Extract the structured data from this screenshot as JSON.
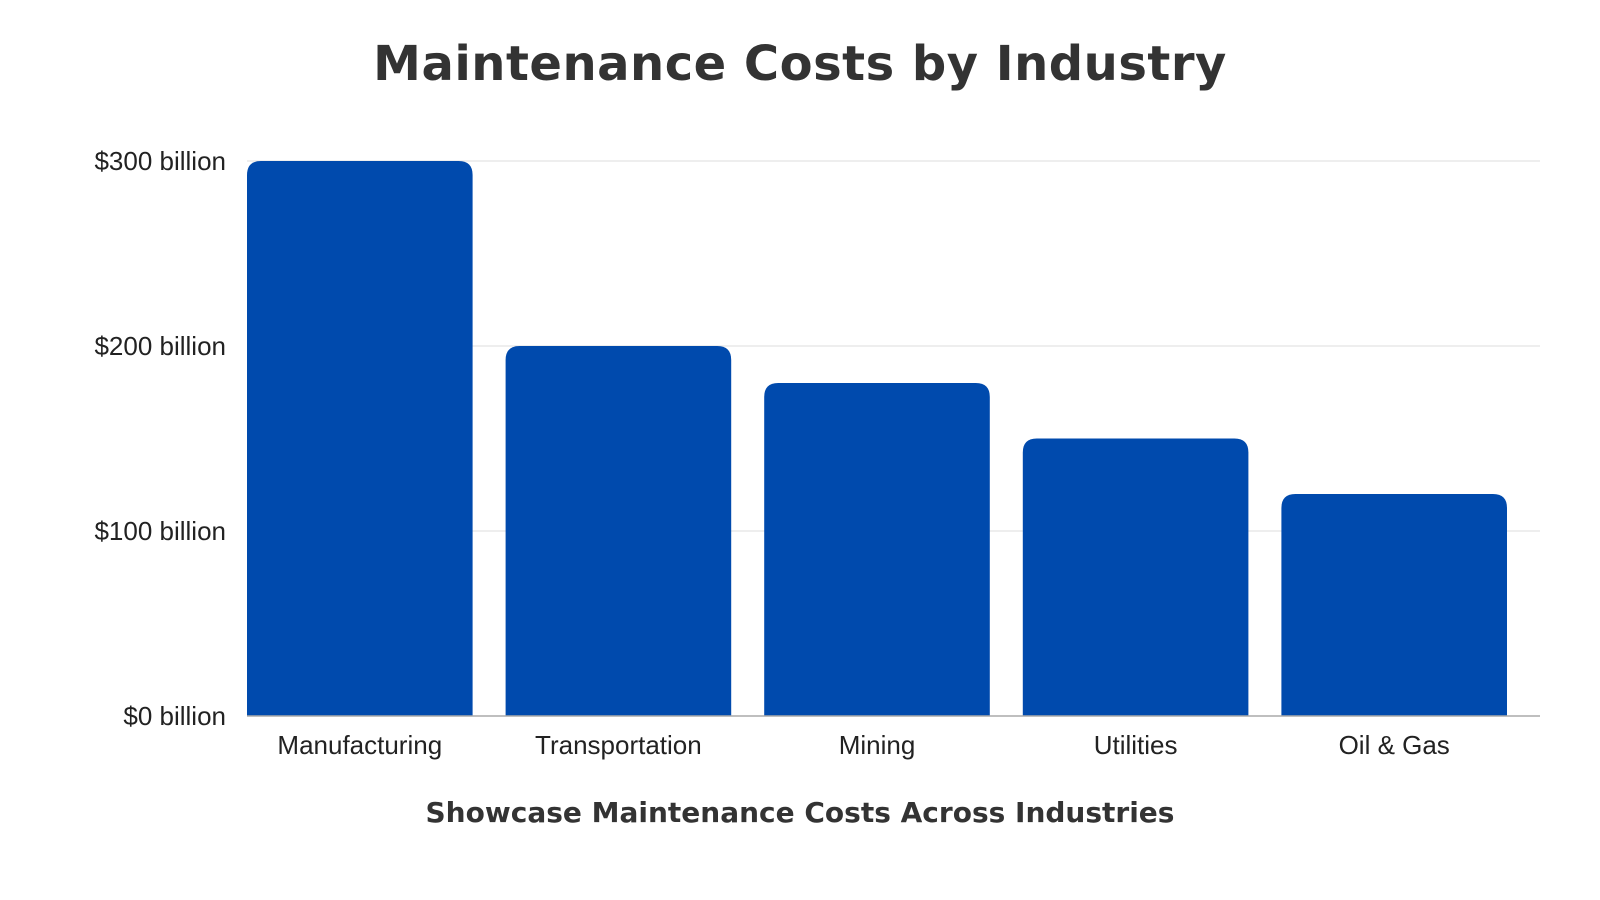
{
  "chart_data": {
    "type": "bar",
    "title": "Maintenance Costs by Industry",
    "subtitle": "Showcase Maintenance Costs Across Industries",
    "xlabel": "Showcase Maintenance Costs Across Industries",
    "ylabel": "",
    "categories": [
      "Manufacturing",
      "Transportation",
      "Mining",
      "Utilities",
      "Oil & Gas"
    ],
    "values": [
      300,
      200,
      180,
      150,
      120
    ],
    "ylim": [
      0,
      300
    ],
    "yticks": [
      0,
      100,
      200,
      300
    ],
    "ytick_labels": [
      "$0 billion",
      "$100 billion",
      "$200 billion",
      "$300 billion"
    ],
    "unit": "billion USD",
    "grid": true,
    "legend": "none",
    "colors": {
      "bar": "#004aad",
      "grid": "#dddddd",
      "axis": "#aaaaaa",
      "text": "#333333"
    }
  }
}
